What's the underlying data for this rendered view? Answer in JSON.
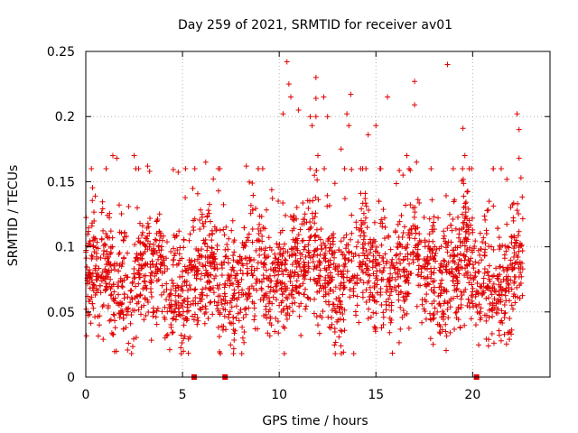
{
  "chart_data": {
    "type": "scatter",
    "title": "Day 259 of 2021, SRMTID for receiver av01",
    "xlabel": "GPS time / hours",
    "ylabel": "SRMTID / TECUs",
    "xlim": [
      0,
      24
    ],
    "ylim": [
      0,
      0.25
    ],
    "xticks": [
      0,
      5,
      10,
      15,
      20
    ],
    "xtick_labels": [
      "0",
      "5",
      "10",
      "15",
      "20"
    ],
    "yticks": [
      0,
      0.05,
      0.1,
      0.15,
      0.2,
      0.25
    ],
    "ytick_labels": [
      "0",
      "0.05",
      "0.1",
      "0.15",
      "0.2",
      "0.25"
    ],
    "grid": true,
    "marker": "+",
    "series": [
      {
        "name": "SRMTID",
        "color": "#e00000",
        "x_range": [
          0,
          22.6
        ],
        "typical_range": [
          0.03,
          0.12
        ],
        "points": [
          [
            1.4,
            0.17
          ],
          [
            1.6,
            0.168
          ],
          [
            2.5,
            0.17
          ],
          [
            3.2,
            0.162
          ],
          [
            3.3,
            0.158
          ],
          [
            6.2,
            0.165
          ],
          [
            8.3,
            0.162
          ],
          [
            10.2,
            0.202
          ],
          [
            10.4,
            0.242
          ],
          [
            10.5,
            0.225
          ],
          [
            10.6,
            0.215
          ],
          [
            11.0,
            0.205
          ],
          [
            11.6,
            0.2
          ],
          [
            11.7,
            0.193
          ],
          [
            11.9,
            0.23
          ],
          [
            11.9,
            0.214
          ],
          [
            11.9,
            0.2
          ],
          [
            12.3,
            0.215
          ],
          [
            12.0,
            0.17
          ],
          [
            12.5,
            0.2
          ],
          [
            13.2,
            0.175
          ],
          [
            13.5,
            0.202
          ],
          [
            13.7,
            0.217
          ],
          [
            13.6,
            0.193
          ],
          [
            14.6,
            0.186
          ],
          [
            15.0,
            0.193
          ],
          [
            15.6,
            0.215
          ],
          [
            16.4,
            0.155
          ],
          [
            16.6,
            0.17
          ],
          [
            17.0,
            0.227
          ],
          [
            17.0,
            0.209
          ],
          [
            17.1,
            0.165
          ],
          [
            18.7,
            0.24
          ],
          [
            19.0,
            0.16
          ],
          [
            19.5,
            0.191
          ],
          [
            19.6,
            0.17
          ],
          [
            22.3,
            0.202
          ],
          [
            22.4,
            0.19
          ],
          [
            22.4,
            0.168
          ],
          [
            22.5,
            0.153
          ],
          [
            0.0,
            0.096
          ],
          [
            0.1,
            0.062
          ],
          [
            0.2,
            0.048
          ],
          [
            0.4,
            0.071
          ],
          [
            0.7,
            0.04
          ],
          [
            0.9,
            0.029
          ],
          [
            1.1,
            0.081
          ],
          [
            1.3,
            0.099
          ],
          [
            1.8,
            0.074
          ],
          [
            2.1,
            0.108
          ],
          [
            2.4,
            0.072
          ],
          [
            2.8,
            0.118
          ],
          [
            3.0,
            0.055
          ],
          [
            3.4,
            0.097
          ],
          [
            3.7,
            0.083
          ],
          [
            4.1,
            0.03
          ],
          [
            4.4,
            0.067
          ],
          [
            4.8,
            0.057
          ],
          [
            5.2,
            0.082
          ],
          [
            5.6,
            0.044
          ],
          [
            6.0,
            0.093
          ],
          [
            6.4,
            0.073
          ],
          [
            6.8,
            0.098
          ],
          [
            7.2,
            0.062
          ],
          [
            7.6,
            0.12
          ],
          [
            8.0,
            0.082
          ],
          [
            8.4,
            0.105
          ],
          [
            8.8,
            0.072
          ],
          [
            9.2,
            0.061
          ],
          [
            9.6,
            0.04
          ],
          [
            10.0,
            0.055
          ],
          [
            10.3,
            0.09
          ],
          [
            10.7,
            0.121
          ],
          [
            11.1,
            0.07
          ],
          [
            11.5,
            0.085
          ],
          [
            12.0,
            0.04
          ],
          [
            12.4,
            0.091
          ],
          [
            12.8,
            0.11
          ],
          [
            13.2,
            0.072
          ],
          [
            13.6,
            0.09
          ],
          [
            14.0,
            0.1
          ],
          [
            14.5,
            0.067
          ],
          [
            15.0,
            0.076
          ],
          [
            15.4,
            0.046
          ],
          [
            15.8,
            0.088
          ],
          [
            16.3,
            0.065
          ],
          [
            16.8,
            0.094
          ],
          [
            17.2,
            0.102
          ],
          [
            17.6,
            0.058
          ],
          [
            18.0,
            0.08
          ],
          [
            18.5,
            0.112
          ],
          [
            19.0,
            0.089
          ],
          [
            19.4,
            0.06
          ],
          [
            19.8,
            0.11
          ],
          [
            20.3,
            0.064
          ],
          [
            20.7,
            0.043
          ],
          [
            21.1,
            0.078
          ],
          [
            21.5,
            0.051
          ],
          [
            21.9,
            0.029
          ],
          [
            22.2,
            0.062
          ],
          [
            22.5,
            0.072
          ]
        ],
        "zero_markers": [
          5.6,
          7.2,
          20.2
        ]
      }
    ]
  }
}
